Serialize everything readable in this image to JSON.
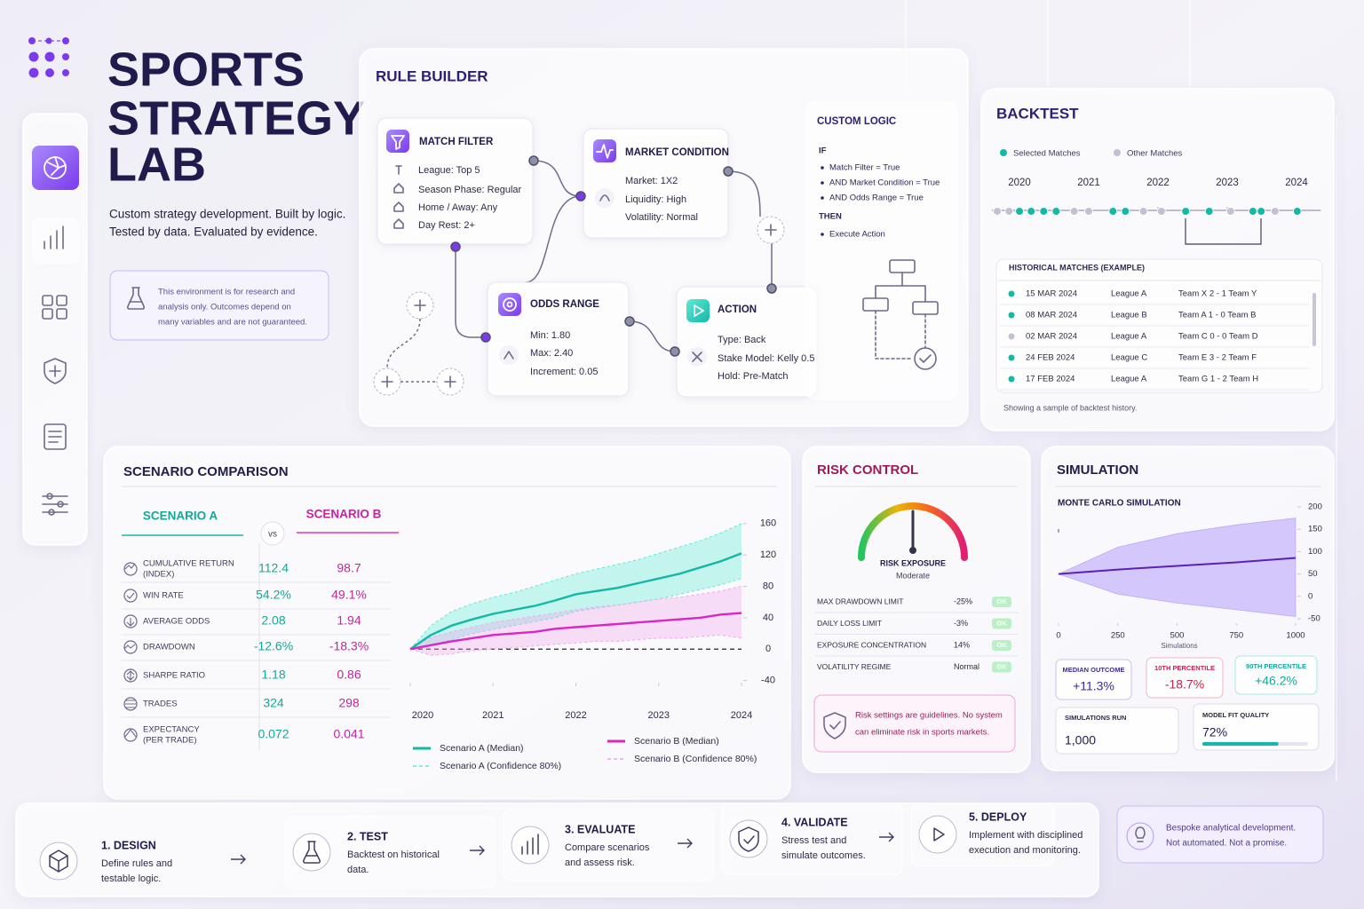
{
  "header": {
    "title": [
      "SPORTS",
      "STRATEGY",
      "LAB"
    ],
    "subtitle": [
      "Custom strategy development. Built by logic.",
      "Tested by data. Evaluated by evidence."
    ],
    "notice": [
      "This environment is for research and",
      "analysis only. Outcomes depend on",
      "many variables and are not guaranteed."
    ]
  },
  "rule_builder": {
    "title": "RULE BUILDER",
    "nodes": [
      {
        "title": "MATCH FILTER",
        "lines": [
          "League: Top 5",
          "Season Phase: Regular",
          "Home / Away: Any",
          "Day Rest: 2+"
        ]
      },
      {
        "title": "MARKET CONDITION",
        "lines": [
          "Market: 1X2",
          "Liquidity: High",
          "Volatility: Normal"
        ]
      },
      {
        "title": "ODDS RANGE",
        "lines": [
          "Min: 1.80",
          "Max: 2.40",
          "Increment: 0.05"
        ]
      },
      {
        "title": "ACTION",
        "lines": [
          "Type: Back",
          "Stake Model: Kelly 0.5",
          "Hold: Pre-Match"
        ]
      }
    ],
    "custom_logic": {
      "title": "CUSTOM LOGIC",
      "if": "IF",
      "conditions": [
        "Match Filter = True",
        "AND Market Condition = True",
        "AND Odds Range = True"
      ],
      "then": "THEN",
      "actions": [
        "Execute Action"
      ]
    }
  },
  "backtest": {
    "title": "BACKTEST",
    "timeline": {
      "type": "scatter",
      "xlim": [
        2019.6,
        2024.35
      ],
      "xticks": [
        2020,
        2021,
        2022,
        2023,
        2024
      ],
      "series": [
        {
          "name": "Selected Matches",
          "color": "#14b8a6",
          "x": [
            2020.0,
            2020.17,
            2020.35,
            2020.53,
            2021.35,
            2021.53,
            2022.4,
            2022.74,
            2023.37,
            2023.49,
            2024.01
          ]
        },
        {
          "name": "Other Matches",
          "color": "#c2c1d3",
          "x": [
            2019.68,
            2019.85,
            2020.79,
            2021.0,
            2021.79,
            2022.05,
            2023.05,
            2023.69
          ]
        }
      ]
    },
    "table": {
      "title": "HISTORICAL MATCHES (EXAMPLE)",
      "rows": [
        {
          "date": "15 MAR 2024",
          "league": "League A",
          "result": "Team X 2 - 1 Team Y",
          "selected": true
        },
        {
          "date": "08 MAR 2024",
          "league": "League B",
          "result": "Team A 1 - 0 Team B",
          "selected": true
        },
        {
          "date": "02 MAR 2024",
          "league": "League A",
          "result": "Team C 0 - 0 Team D",
          "selected": false
        },
        {
          "date": "24 FEB 2024",
          "league": "League C",
          "result": "Team E 3 - 2 Team F",
          "selected": true
        },
        {
          "date": "17 FEB 2024",
          "league": "League A",
          "result": "Team G 1 - 2 Team H",
          "selected": true
        }
      ]
    },
    "footer": "Showing a sample of backtest history."
  },
  "scenario": {
    "title": "SCENARIO COMPARISON",
    "scenario_a": "SCENARIO A",
    "vs": "vs",
    "scenario_b": "SCENARIO B",
    "metrics": [
      {
        "label": [
          "CUMULATIVE RETURN",
          "(INDEX)"
        ],
        "a": "112.4",
        "b": "98.7"
      },
      {
        "label": [
          "WIN RATE"
        ],
        "a": "54.2%",
        "b": "49.1%"
      },
      {
        "label": [
          "AVERAGE ODDS"
        ],
        "a": "2.08",
        "b": "1.94"
      },
      {
        "label": [
          "DRAWDOWN"
        ],
        "a": "-12.6%",
        "b": "-18.3%"
      },
      {
        "label": [
          "SHARPE RATIO"
        ],
        "a": "1.18",
        "b": "0.86"
      },
      {
        "label": [
          "TRADES"
        ],
        "a": "324",
        "b": "298"
      },
      {
        "label": [
          "EXPECTANCY",
          "(PER TRADE)"
        ],
        "a": "0.072",
        "b": "0.041"
      }
    ],
    "chart": {
      "type": "line",
      "x": [
        2020,
        2020.25,
        2020.5,
        2020.75,
        2021,
        2021.25,
        2021.5,
        2021.75,
        2022,
        2022.25,
        2022.5,
        2022.75,
        2023,
        2023.25,
        2023.5,
        2023.75,
        2024
      ],
      "xlim": [
        2020,
        2024
      ],
      "xticks": [
        2020,
        2021,
        2022,
        2023,
        2024
      ],
      "ylim": [
        -45,
        170
      ],
      "yticks": [
        160,
        120,
        80,
        40,
        0,
        -40
      ],
      "series": [
        {
          "name": "Scenario A (Median)",
          "color": "#14b8a6",
          "values": [
            0,
            18,
            30,
            38,
            45,
            50,
            55,
            62,
            70,
            74,
            78,
            84,
            90,
            96,
            104,
            112,
            122
          ]
        },
        {
          "name": "Scenario A (Confidence 80%)",
          "color": "#5eead4",
          "lower": [
            0,
            5,
            12,
            20,
            25,
            30,
            35,
            40,
            48,
            52,
            56,
            60,
            64,
            70,
            76,
            82,
            90
          ],
          "upper": [
            0,
            30,
            48,
            58,
            66,
            72,
            80,
            88,
            96,
            102,
            108,
            114,
            122,
            130,
            138,
            148,
            160
          ]
        },
        {
          "name": "Scenario B (Median)",
          "color": "#d926c4",
          "values": [
            0,
            5,
            10,
            14,
            18,
            20,
            22,
            26,
            28,
            30,
            32,
            34,
            36,
            38,
            40,
            44,
            46
          ]
        },
        {
          "name": "Scenario B (Confidence 80%)",
          "color": "#f0a6ec",
          "lower": [
            0,
            -8,
            -6,
            -2,
            0,
            2,
            4,
            6,
            8,
            10,
            10,
            12,
            14,
            14,
            16,
            18,
            14
          ],
          "upper": [
            0,
            15,
            22,
            28,
            34,
            38,
            42,
            46,
            50,
            54,
            56,
            60,
            64,
            66,
            70,
            74,
            80
          ]
        }
      ]
    }
  },
  "risk": {
    "title": "RISK CONTROL",
    "gauge": {
      "label": "RISK EXPOSURE",
      "level": "Moderate",
      "value": 50,
      "lim": [
        0,
        100
      ]
    },
    "rows": [
      {
        "label": "MAX DRAWDOWN LIMIT",
        "value": "-25%",
        "status": "OK"
      },
      {
        "label": "DAILY LOSS LIMIT",
        "value": "-3%",
        "status": "OK"
      },
      {
        "label": "EXPOSURE CONCENTRATION",
        "value": "14%",
        "status": "OK"
      },
      {
        "label": "VOLATILITY REGIME",
        "value": "Normal",
        "status": "OK"
      }
    ],
    "note": [
      "Risk settings are guidelines. No system",
      "can eliminate risk in sports markets."
    ]
  },
  "simulation": {
    "title": "SIMULATION",
    "chart": {
      "type": "line",
      "title": "MONTE CARLO SIMULATION",
      "x_label": "Simulations",
      "x": [
        0,
        250,
        500,
        750,
        1000
      ],
      "xlim": [
        0,
        1000
      ],
      "xticks": [
        0,
        250,
        500,
        750,
        1000
      ],
      "ylim": [
        -50,
        210
      ],
      "yticks": [
        200,
        150,
        100,
        50,
        0,
        -50
      ],
      "series": [
        {
          "color": "#5b21b6",
          "values": [
            50,
            60,
            68,
            76,
            86
          ]
        }
      ],
      "band": {
        "color": "#a78bfa",
        "lower": [
          50,
          5,
          -15,
          -30,
          -45
        ],
        "upper": [
          50,
          110,
          140,
          160,
          175
        ]
      }
    },
    "stats": [
      {
        "label": "MEDIAN OUTCOME",
        "value": "+11.3%"
      },
      {
        "label": "10TH PERCENTILE",
        "value": "-18.7%"
      },
      {
        "label": "90TH PERCENTILE",
        "value": "+46.2%"
      },
      {
        "label": "SIMULATIONS RUN",
        "value": "1,000"
      }
    ],
    "model_fit": {
      "label": "MODEL FIT QUALITY",
      "value": 72,
      "value_label": "72%",
      "xlim": [
        0,
        100
      ]
    }
  },
  "steps": [
    {
      "title": "1. DESIGN",
      "text": [
        "Define rules and",
        "testable logic."
      ]
    },
    {
      "title": "2. TEST",
      "text": [
        "Backtest on historical",
        "data."
      ]
    },
    {
      "title": "3. EVALUATE",
      "text": [
        "Compare scenarios",
        "and assess risk."
      ]
    },
    {
      "title": "4. VALIDATE",
      "text": [
        "Stress test and",
        "simulate outcomes."
      ]
    },
    {
      "title": "5. DEPLOY",
      "text": [
        "Implement with disciplined",
        "execution and monitoring."
      ]
    }
  ],
  "disclaimer": [
    "Bespoke analytical development.",
    "Not automated. Not a promise."
  ]
}
